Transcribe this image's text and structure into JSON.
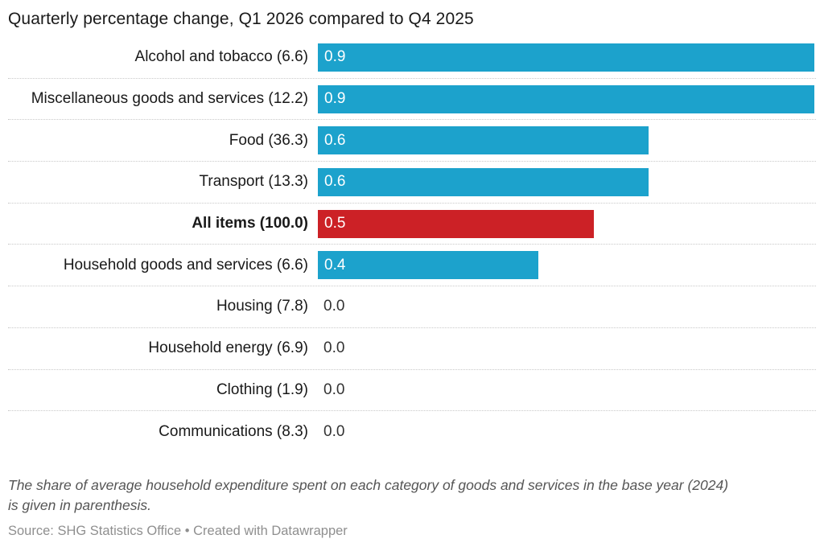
{
  "title": "Quarterly percentage change, Q1 2026 compared to Q4 2025",
  "chart_data": {
    "type": "bar",
    "orientation": "horizontal",
    "title": "Quarterly percentage change, Q1 2026 compared to Q4 2025",
    "xlim": [
      0,
      0.9
    ],
    "grid": "dotted row separators",
    "value_labels": "inside bar start, white; zero values shown in dark text outside",
    "colors": {
      "default_bar": "#1CA2CC",
      "highlight_bar": "#CC2126"
    },
    "categories": [
      "Alcohol and tobacco (6.6)",
      "Miscellaneous goods and services (12.2)",
      "Food (36.3)",
      "Transport (13.3)",
      "All items (100.0)",
      "Household goods and services (6.6)",
      "Housing (7.8)",
      "Household energy (6.9)",
      "Clothing (1.9)",
      "Communications (8.3)"
    ],
    "values": [
      0.9,
      0.9,
      0.6,
      0.6,
      0.5,
      0.4,
      0.0,
      0.0,
      0.0,
      0.0
    ],
    "bars": [
      {
        "label": "Alcohol and tobacco (6.6)",
        "category": "Alcohol and tobacco",
        "share": "6.6",
        "value": 0.9,
        "value_label": "0.9",
        "color": "#1CA2CC",
        "bold": false
      },
      {
        "label": "Miscellaneous goods and services (12.2)",
        "category": "Miscellaneous goods and services",
        "share": "12.2",
        "value": 0.9,
        "value_label": "0.9",
        "color": "#1CA2CC",
        "bold": false
      },
      {
        "label": "Food (36.3)",
        "category": "Food",
        "share": "36.3",
        "value": 0.6,
        "value_label": "0.6",
        "color": "#1CA2CC",
        "bold": false
      },
      {
        "label": "Transport (13.3)",
        "category": "Transport",
        "share": "13.3",
        "value": 0.6,
        "value_label": "0.6",
        "color": "#1CA2CC",
        "bold": false
      },
      {
        "label": "All items (100.0)",
        "category": "All items",
        "share": "100.0",
        "value": 0.5,
        "value_label": "0.5",
        "color": "#CC2126",
        "bold": true
      },
      {
        "label": "Household goods and services (6.6)",
        "category": "Household goods and services",
        "share": "6.6",
        "value": 0.4,
        "value_label": "0.4",
        "color": "#1CA2CC",
        "bold": false
      },
      {
        "label": "Housing (7.8)",
        "category": "Housing",
        "share": "7.8",
        "value": 0.0,
        "value_label": "0.0",
        "color": null,
        "bold": false
      },
      {
        "label": "Household energy (6.9)",
        "category": "Household energy",
        "share": "6.9",
        "value": 0.0,
        "value_label": "0.0",
        "color": null,
        "bold": false
      },
      {
        "label": "Clothing (1.9)",
        "category": "Clothing",
        "share": "1.9",
        "value": 0.0,
        "value_label": "0.0",
        "color": null,
        "bold": false
      },
      {
        "label": "Communications (8.3)",
        "category": "Communications",
        "share": "8.3",
        "value": 0.0,
        "value_label": "0.0",
        "color": null,
        "bold": false
      }
    ]
  },
  "footnote": {
    "line1": "The share of average household expenditure spent on each category of goods and services in the base year (2024)",
    "line2": "is given in parenthesis."
  },
  "source": "Source: SHG Statistics Office • Created with Datawrapper"
}
